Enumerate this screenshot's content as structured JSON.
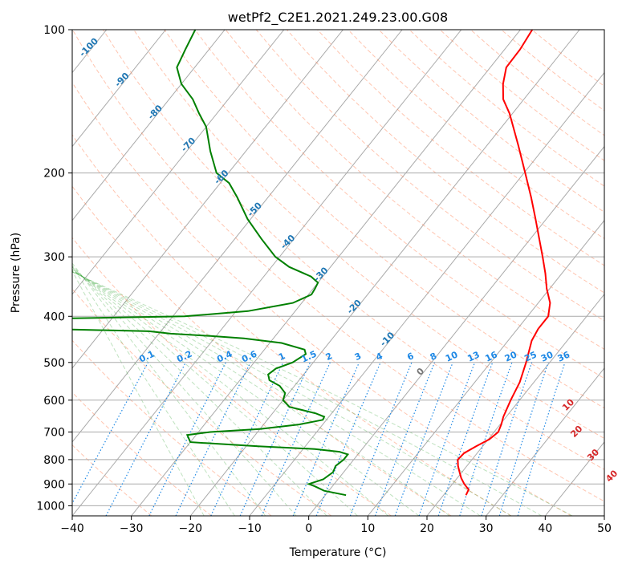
{
  "chart_data": {
    "type": "skew-t",
    "title": "wetPf2_C2E1.2021.249.23.00.G08",
    "xlabel": "Temperature (°C)",
    "ylabel": "Pressure (hPa)",
    "xlim": [
      -40,
      50
    ],
    "ylim": [
      1050,
      100
    ],
    "x_ticks": [
      "−40",
      "−30",
      "−20",
      "−10",
      "0",
      "10",
      "20",
      "30",
      "40",
      "50"
    ],
    "y_ticks": [
      "100",
      "200",
      "300",
      "400",
      "500",
      "600",
      "700",
      "800",
      "900",
      "1000"
    ],
    "grid": true,
    "series": [
      {
        "color": "#ff0000",
        "points": [
          [
            950,
            23.8
          ],
          [
            925,
            23.5
          ],
          [
            900,
            22.0
          ],
          [
            875,
            20.7
          ],
          [
            850,
            19.6
          ],
          [
            825,
            18.5
          ],
          [
            800,
            17.6
          ],
          [
            775,
            17.8
          ],
          [
            750,
            18.9
          ],
          [
            725,
            20.2
          ],
          [
            700,
            20.7
          ],
          [
            675,
            20.2
          ],
          [
            650,
            19.5
          ],
          [
            600,
            18.5
          ],
          [
            550,
            17.6
          ],
          [
            500,
            16.0
          ],
          [
            450,
            14.0
          ],
          [
            425,
            13.5
          ],
          [
            400,
            13.5
          ],
          [
            375,
            12.0
          ],
          [
            350,
            9.5
          ],
          [
            325,
            7.2
          ],
          [
            300,
            4.5
          ],
          [
            275,
            1.5
          ],
          [
            250,
            -1.8
          ],
          [
            225,
            -5.5
          ],
          [
            200,
            -9.8
          ],
          [
            175,
            -14.7
          ],
          [
            150,
            -20.5
          ],
          [
            140,
            -23.5
          ],
          [
            130,
            -25.6
          ],
          [
            120,
            -27.3
          ],
          [
            110,
            -27.4
          ],
          [
            100,
            -28.0
          ]
        ]
      },
      {
        "color": "#008000",
        "points": [
          [
            950,
            3.5
          ],
          [
            930,
            -0.8
          ],
          [
            910,
            -3.0
          ],
          [
            900,
            -4.3
          ],
          [
            880,
            -2.5
          ],
          [
            850,
            -1.8
          ],
          [
            825,
            -2.2
          ],
          [
            800,
            -1.7
          ],
          [
            780,
            -1.7
          ],
          [
            770,
            -3.5
          ],
          [
            760,
            -8.0
          ],
          [
            750,
            -18.0
          ],
          [
            735,
            -30.0
          ],
          [
            710,
            -31.5
          ],
          [
            700,
            -28.0
          ],
          [
            690,
            -20.0
          ],
          [
            675,
            -14.0
          ],
          [
            660,
            -10.6
          ],
          [
            650,
            -10.8
          ],
          [
            640,
            -12.6
          ],
          [
            620,
            -18.0
          ],
          [
            600,
            -20.0
          ],
          [
            580,
            -20.6
          ],
          [
            560,
            -22.5
          ],
          [
            545,
            -25.0
          ],
          [
            530,
            -26.0
          ],
          [
            515,
            -25.5
          ],
          [
            500,
            -23.5
          ],
          [
            480,
            -22.4
          ],
          [
            470,
            -23.2
          ],
          [
            455,
            -28.0
          ],
          [
            445,
            -35.0
          ],
          [
            440,
            -41.0
          ],
          [
            435,
            -48.0
          ],
          [
            430,
            -52.0
          ],
          [
            425,
            -70.0
          ],
          [
            405,
            -72.0
          ],
          [
            400,
            -48.0
          ],
          [
            390,
            -38.0
          ],
          [
            375,
            -31.5
          ],
          [
            360,
            -29.5
          ],
          [
            350,
            -29.7
          ],
          [
            340,
            -30.0
          ],
          [
            330,
            -32.0
          ],
          [
            315,
            -37.0
          ],
          [
            300,
            -40.7
          ],
          [
            275,
            -45.5
          ],
          [
            250,
            -50.5
          ],
          [
            225,
            -55.2
          ],
          [
            210,
            -58.5
          ],
          [
            200,
            -62.0
          ],
          [
            180,
            -66.0
          ],
          [
            160,
            -70.0
          ],
          [
            150,
            -73.0
          ],
          [
            140,
            -76.0
          ],
          [
            130,
            -80.0
          ],
          [
            120,
            -83.0
          ],
          [
            110,
            -84.0
          ],
          [
            100,
            -85.0
          ]
        ]
      }
    ],
    "mixing_ratio_labels": [
      "0.1",
      "0.2",
      "0.4",
      "0.6",
      "1",
      "1.5",
      "2",
      "3",
      "4",
      "6",
      "8",
      "10",
      "13",
      "16",
      "20",
      "25",
      "30",
      "36"
    ],
    "dry_adiabat_labels": [
      "-100",
      "-90",
      "-80",
      "-70",
      "-60",
      "-50",
      "-40",
      "-30",
      "-20",
      "-10",
      "0"
    ],
    "moist_adiabat_labels": [
      "10",
      "20",
      "30",
      "40"
    ]
  }
}
